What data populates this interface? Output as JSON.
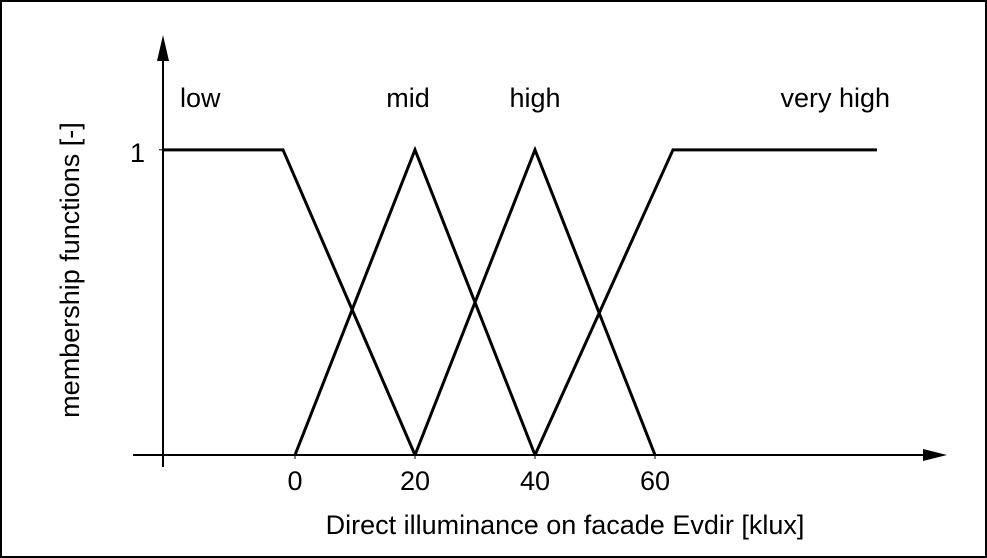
{
  "chart_data": {
    "type": "line",
    "x_label": "Direct illuminance on facade Evdir [klux]",
    "y_label": "membership functions [-]",
    "xlim": [
      -22,
      107
    ],
    "ylim": [
      0,
      1.35
    ],
    "xticks": [
      0,
      20,
      40,
      60
    ],
    "yticks": [
      1
    ],
    "series": [
      {
        "name": "low",
        "color": "#000000",
        "x": [
          -22,
          -2,
          20
        ],
        "values": [
          1,
          1,
          0
        ]
      },
      {
        "name": "mid",
        "color": "#000000",
        "x": [
          0,
          20,
          40
        ],
        "values": [
          0,
          1,
          0
        ]
      },
      {
        "name": "high",
        "color": "#000000",
        "x": [
          20,
          40,
          60
        ],
        "values": [
          0,
          1,
          0
        ]
      },
      {
        "name": "very high",
        "color": "#000000",
        "x": [
          40,
          63,
          97
        ],
        "values": [
          0,
          1,
          1
        ]
      }
    ]
  }
}
